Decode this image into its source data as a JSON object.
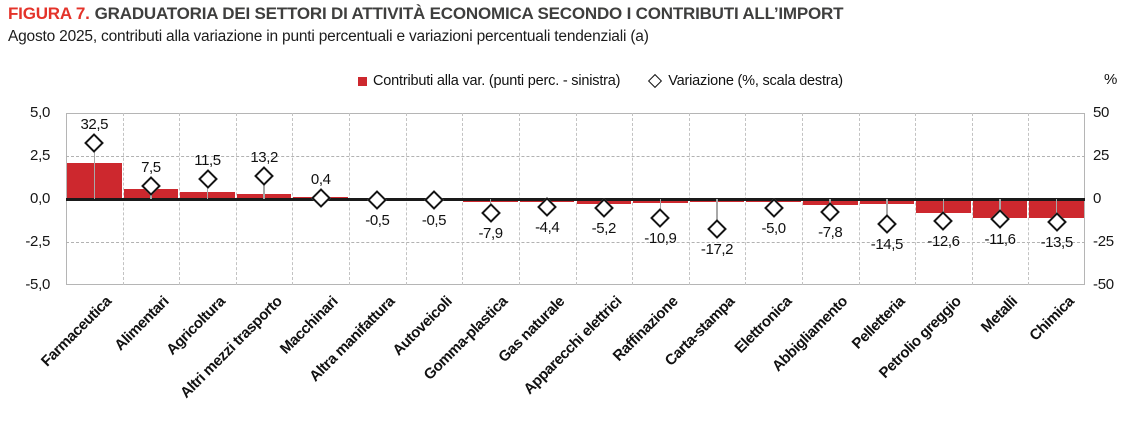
{
  "figure": {
    "label": "FIGURA 7.",
    "title": "GRADUATORIA DEI SETTORI DI ATTIVITÀ ECONOMICA SECONDO I CONTRIBUTI ALL’IMPORT",
    "subtitle": "Agosto 2025, contributi alla variazione in punti percentuali e variazioni percentuali tendenziali (a)"
  },
  "legend": [
    {
      "label": "Contributi alla var. (punti perc. - sinistra)",
      "marker": "red-square",
      "color": "#cd282e"
    },
    {
      "label": "Variazione (%, scala destra)",
      "marker": "diamond-outline",
      "color": "#141414"
    }
  ],
  "chart_data": {
    "type": "combo-bar-scatter",
    "categories": [
      "Farmaceutica",
      "Alimentari",
      "Agricoltura",
      "Altri mezzi trasporto",
      "Macchinari",
      "Altra manifattura",
      "Autoveicoli",
      "Gomma-plastica",
      "Gas naturale",
      "Apparecchi elettrici",
      "Raffinazione",
      "Carta-stampa",
      "Elettronica",
      "Abbigliamento",
      "Pelletteria",
      "Petrolio greggio",
      "Metalli",
      "Chimica"
    ],
    "series": [
      {
        "name": "Contributi alla var. (punti perc. - sinistra)",
        "type": "bar",
        "axis": "left",
        "color": "#cd282e",
        "values": [
          2.1,
          0.6,
          0.4,
          0.3,
          0.1,
          0.0,
          0.0,
          -0.2,
          -0.15,
          -0.3,
          -0.25,
          -0.2,
          -0.2,
          -0.35,
          -0.3,
          -0.8,
          -1.1,
          -1.1
        ]
      },
      {
        "name": "Variazione (%, scala destra)",
        "type": "scatter",
        "marker": "diamond",
        "axis": "right",
        "values": [
          32.5,
          7.5,
          11.5,
          13.2,
          0.4,
          -0.5,
          -0.5,
          -7.9,
          -4.4,
          -5.2,
          -10.9,
          -17.2,
          -5.0,
          -7.8,
          -14.5,
          -12.6,
          -11.6,
          -13.5
        ],
        "labels": [
          "32,5",
          "7,5",
          "11,5",
          "13,2",
          "0,4",
          "-0,5",
          "-0,5",
          "-7,9",
          "-4,4",
          "-5,2",
          "-10,9",
          "-17,2",
          "-5,0",
          "-7,8",
          "-14,5",
          "-12,6",
          "-11,6",
          "-13,5"
        ]
      }
    ],
    "left_axis": {
      "ticks": [
        "5,0",
        "2,5",
        "0,0",
        "-2,5",
        "-5,0"
      ],
      "tick_values": [
        5.0,
        2.5,
        0.0,
        -2.5,
        -5.0
      ],
      "min": -5,
      "max": 5
    },
    "right_axis": {
      "ticks": [
        "50",
        "25",
        "0",
        "-25",
        "-50"
      ],
      "tick_values": [
        50,
        25,
        0,
        -25,
        -50
      ],
      "min": -50,
      "max": 50,
      "title": "%"
    },
    "grid": {
      "horizontal_dashed_at": [
        2.5,
        -2.5
      ],
      "vertical_dashed": "category-boundaries"
    }
  }
}
